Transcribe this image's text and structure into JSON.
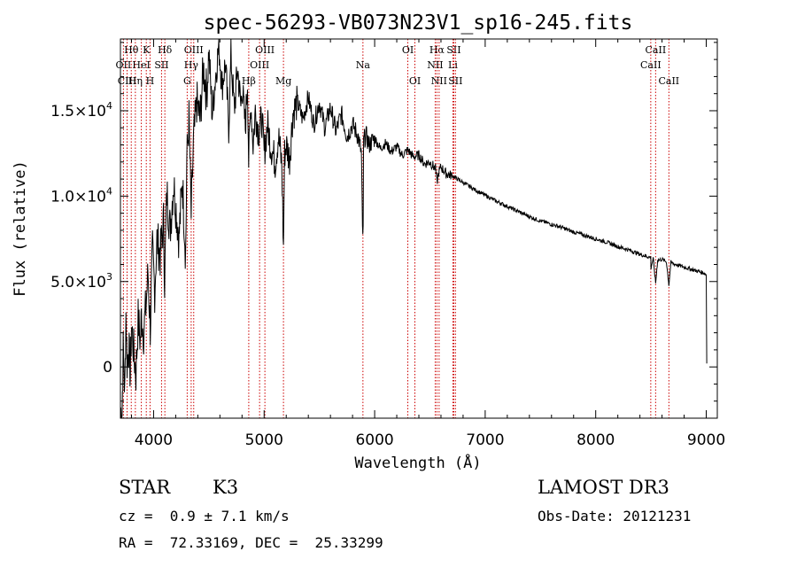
{
  "chart_data": {
    "type": "line",
    "title": "spec-56293-VB073N23V1_sp16-245.fits",
    "xlabel": "Wavelength (Å)",
    "ylabel": "Flux (relative)",
    "xlim": [
      3700,
      9100
    ],
    "ylim": [
      -3000,
      19200
    ],
    "xticks": [
      {
        "value": 4000,
        "label": "4000"
      },
      {
        "value": 5000,
        "label": "5000"
      },
      {
        "value": 6000,
        "label": "6000"
      },
      {
        "value": 7000,
        "label": "7000"
      },
      {
        "value": 8000,
        "label": "8000"
      },
      {
        "value": 9000,
        "label": "9000"
      }
    ],
    "yticks": [
      {
        "value": 0,
        "mantissa": "0",
        "exponent": ""
      },
      {
        "value": 5000,
        "mantissa": "5.0×10",
        "exponent": "3"
      },
      {
        "value": 10000,
        "mantissa": "1.0×10",
        "exponent": "4"
      },
      {
        "value": 15000,
        "mantissa": "1.5×10",
        "exponent": "4"
      }
    ],
    "series": [
      {
        "name": "flux",
        "x": [
          3700,
          3715,
          3725,
          3740,
          3750,
          3760,
          3775,
          3790,
          3800,
          3820,
          3840,
          3860,
          3880,
          3890,
          3910,
          3930,
          3950,
          3970,
          3990,
          4010,
          4030,
          4060,
          4090,
          4100,
          4120,
          4150,
          4180,
          4200,
          4230,
          4260,
          4290,
          4300,
          4320,
          4340,
          4360,
          4390,
          4420,
          4450,
          4480,
          4500,
          4530,
          4560,
          4590,
          4620,
          4650,
          4680,
          4700,
          4730,
          4760,
          4790,
          4800,
          4830,
          4850,
          4860,
          4880,
          4900,
          4920,
          4950,
          4980,
          5000,
          5030,
          5060,
          5100,
          5130,
          5160,
          5175,
          5185,
          5200,
          5230,
          5260,
          5300,
          5350,
          5400,
          5450,
          5500,
          5550,
          5600,
          5650,
          5700,
          5750,
          5800,
          5850,
          5880,
          5890,
          5896,
          5900,
          5920,
          5950,
          6000,
          6050,
          6100,
          6150,
          6200,
          6250,
          6300,
          6350,
          6400,
          6450,
          6500,
          6550,
          6563,
          6580,
          6600,
          6650,
          6700,
          6750,
          6800,
          6900,
          7000,
          7100,
          7200,
          7300,
          7400,
          7500,
          7600,
          7700,
          7800,
          7900,
          8000,
          8100,
          8200,
          8300,
          8400,
          8498,
          8500,
          8520,
          8542,
          8560,
          8600,
          8640,
          8662,
          8680,
          8700,
          8750,
          8800,
          8850,
          8900,
          8950,
          8980,
          9000,
          9005
        ],
        "y": [
          -2500,
          -2700,
          1000,
          -1500,
          3200,
          300,
          1200,
          -500,
          2500,
          900,
          -400,
          2800,
          1500,
          3000,
          2000,
          3500,
          5500,
          2300,
          6800,
          4500,
          7500,
          6500,
          8500,
          5000,
          10200,
          8000,
          10800,
          9500,
          7500,
          11000,
          6500,
          12000,
          14500,
          8800,
          13000,
          15500,
          14500,
          17500,
          16000,
          18500,
          14800,
          17000,
          18800,
          16500,
          17800,
          14000,
          18200,
          15000,
          17500,
          15200,
          16500,
          14000,
          16800,
          12000,
          15500,
          13000,
          15000,
          13800,
          14500,
          12500,
          14200,
          13000,
          12000,
          13500,
          11800,
          6900,
          12500,
          13000,
          12200,
          14800,
          15500,
          14500,
          15800,
          14200,
          15500,
          14000,
          15200,
          13800,
          14800,
          13500,
          14200,
          13500,
          12500,
          8000,
          7800,
          13200,
          13600,
          13000,
          13400,
          12800,
          13100,
          12600,
          12900,
          12400,
          12700,
          12300,
          12400,
          11900,
          12000,
          11600,
          10800,
          11400,
          11700,
          11300,
          11200,
          11000,
          10800,
          10400,
          10050,
          9700,
          9400,
          9100,
          8800,
          8550,
          8350,
          8150,
          7900,
          7700,
          7500,
          7300,
          7050,
          6850,
          6600,
          6400,
          5800,
          6350,
          4900,
          6250,
          6300,
          6150,
          4800,
          6100,
          6050,
          5950,
          5850,
          5750,
          5650,
          5550,
          5500,
          5400,
          200
        ]
      }
    ],
    "spectral_lines": [
      {
        "name": "Hθ",
        "wavelength": 3798,
        "row": 0
      },
      {
        "name": "OII",
        "wavelength": 3727,
        "row": 1
      },
      {
        "name": "CIII",
        "wavelength": 3760,
        "row": 2
      },
      {
        "name": "K",
        "wavelength": 3934,
        "row": 0
      },
      {
        "name": "HeI",
        "wavelength": 3889,
        "row": 1
      },
      {
        "name": "Hη",
        "wavelength": 3835,
        "row": 2
      },
      {
        "name": "Hδ",
        "wavelength": 4102,
        "row": 0
      },
      {
        "name": "SII",
        "wavelength": 4072,
        "row": 1
      },
      {
        "name": "H",
        "wavelength": 3968,
        "row": 2
      },
      {
        "name": "OIII",
        "wavelength": 4363,
        "row": 0
      },
      {
        "name": "Hγ",
        "wavelength": 4340,
        "row": 1
      },
      {
        "name": "G",
        "wavelength": 4304,
        "row": 2
      },
      {
        "name": "OIII",
        "wavelength": 5007,
        "row": 0
      },
      {
        "name": "OIII",
        "wavelength": 4959,
        "row": 1
      },
      {
        "name": "Hβ",
        "wavelength": 4861,
        "row": 2
      },
      {
        "name": "Mg",
        "wavelength": 5175,
        "row": 2
      },
      {
        "name": "Na",
        "wavelength": 5894,
        "row": 1
      },
      {
        "name": "OI",
        "wavelength": 6300,
        "row": 0
      },
      {
        "name": "OI",
        "wavelength": 6364,
        "row": 2
      },
      {
        "name": "Hα",
        "wavelength": 6563,
        "row": 0
      },
      {
        "name": "NII",
        "wavelength": 6548,
        "row": 1
      },
      {
        "name": "NII",
        "wavelength": 6583,
        "row": 2
      },
      {
        "name": "SII",
        "wavelength": 6716,
        "row": 0
      },
      {
        "name": "Li",
        "wavelength": 6708,
        "row": 1
      },
      {
        "name": "SII",
        "wavelength": 6731,
        "row": 2
      },
      {
        "name": "CaII",
        "wavelength": 8542,
        "row": 0
      },
      {
        "name": "CaII",
        "wavelength": 8498,
        "row": 1
      },
      {
        "name": "CaII",
        "wavelength": 8662,
        "row": 2
      }
    ],
    "colors": {
      "spectrum": "#000000",
      "lines": "#cc0000",
      "axes": "#000000"
    }
  },
  "info": {
    "object_class": "STAR",
    "subclass": "K3",
    "redshift": "cz =  0.9 ± 7.1 km/s",
    "coords": "RA =  72.33169, DEC =  25.33299",
    "survey": "LAMOST DR3",
    "obs_date": "Obs-Date: 20121231"
  }
}
